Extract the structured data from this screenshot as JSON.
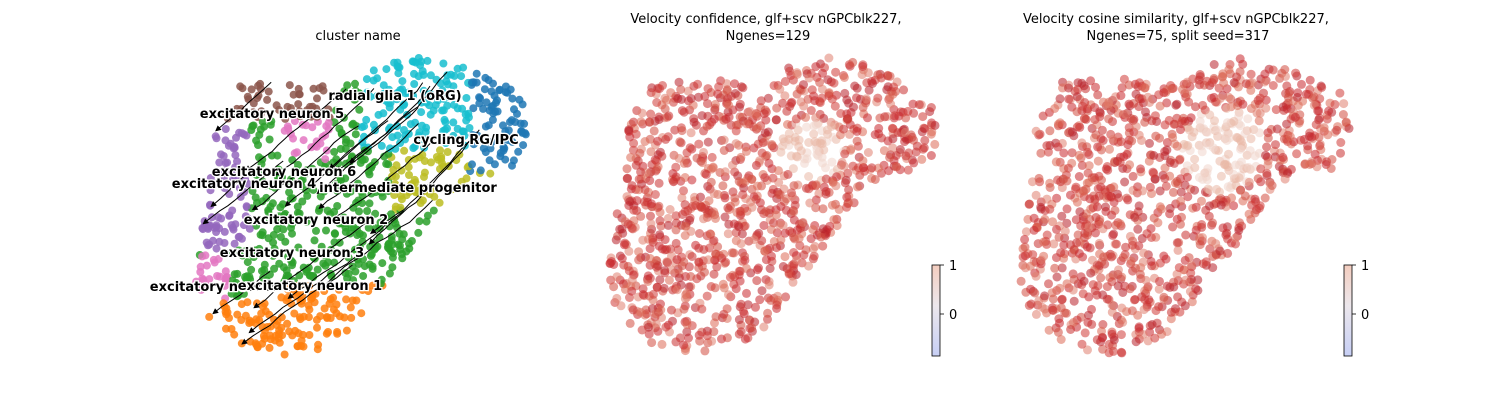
{
  "chart_data": [
    {
      "type": "scatter",
      "subtype": "embedding-with-velocity-streamlines",
      "title": "cluster name",
      "axes_visible": false,
      "categories": [
        {
          "name": "radial glia 1 (oRG)",
          "color": "#17becf"
        },
        {
          "name": "cycling RG/IPC",
          "color": "#1f77b4"
        },
        {
          "name": "excitatory neuron 5",
          "color": "#8c564b"
        },
        {
          "name": "excitatory neuron 6",
          "color": "#e377c2"
        },
        {
          "name": "excitatory neuron 4",
          "color": "#9467bd"
        },
        {
          "name": "intermediate progenitor",
          "color": "#bcbd22"
        },
        {
          "name": "excitatory neuron 2",
          "color": "#2ca02c"
        },
        {
          "name": "excitatory neuron 3",
          "color": "#2ca02c"
        },
        {
          "name": "excitatory neuron 7",
          "color": "#e377c2"
        },
        {
          "name": "excitatory neuron 1",
          "color": "#ff7f0e"
        }
      ]
    },
    {
      "type": "scatter",
      "title": "Velocity confidence, glf+scv nGPCblk227,\nNgenes=129",
      "axes_visible": false,
      "colormap": "coolwarm",
      "colorbar": {
        "ticks": [
          "1",
          "0"
        ]
      },
      "dominant_color": "#c8282e"
    },
    {
      "type": "scatter",
      "title": "Velocity cosine similarity, glf+scv nGPCblk227,\nNgenes=75, split seed=317",
      "axes_visible": false,
      "colormap": "coolwarm",
      "colorbar": {
        "ticks": [
          "1",
          "0"
        ]
      },
      "dominant_color": "#c8282e"
    }
  ]
}
